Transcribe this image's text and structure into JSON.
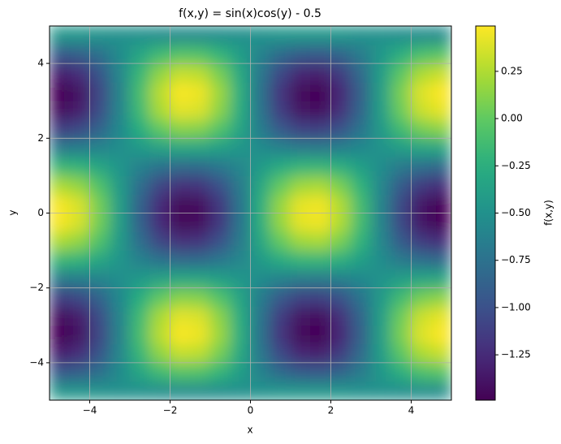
{
  "chart_data": {
    "type": "heatmap",
    "title": "f(x,y) = sin(x)cos(y) - 0.5",
    "x_label": "x",
    "y_label": "y",
    "colorbar_label": "f(x,y)",
    "colormap": "viridis",
    "grid": true,
    "xlim": [
      -5,
      5
    ],
    "ylim": [
      -5,
      5
    ],
    "clim": [
      -1.49,
      0.49
    ],
    "xticks": [
      {
        "value": -4,
        "label": "−4"
      },
      {
        "value": -2,
        "label": "−2"
      },
      0,
      2,
      4
    ],
    "yticks": [
      {
        "value": -4,
        "label": "−4"
      },
      {
        "value": -2,
        "label": "−2"
      },
      0,
      2,
      4
    ],
    "cticks": [
      0.25,
      {
        "value": 0,
        "label": "0.00"
      },
      {
        "value": -0.25,
        "label": "−0.25"
      },
      {
        "value": -0.5,
        "label": "−0.50"
      },
      {
        "value": -0.75,
        "label": "−0.75"
      },
      {
        "value": -1,
        "label": "−1.00"
      },
      {
        "value": -1.25,
        "label": "−1.25"
      }
    ],
    "x": [
      -4.75,
      -4.25,
      -3.75,
      -3.25,
      -2.75,
      -2.25,
      -1.75,
      -1.25,
      -0.75,
      -0.25,
      0.25,
      0.75,
      1.25,
      1.75,
      2.25,
      2.75,
      3.25,
      3.75,
      4.25,
      4.75
    ],
    "y": [
      -4.75,
      -4.25,
      -3.75,
      -3.25,
      -2.75,
      -2.25,
      -1.75,
      -1.25,
      -0.75,
      -0.25,
      0.25,
      0.75,
      1.25,
      1.75,
      2.25,
      2.75,
      3.25,
      3.75,
      4.25,
      4.75
    ],
    "z": [
      [
        -0.46,
        -0.47,
        -0.48,
        -0.5,
        -0.51,
        -0.53,
        -0.54,
        -0.54,
        -0.53,
        -0.51,
        -0.49,
        -0.47,
        -0.46,
        -0.46,
        -0.47,
        -0.49,
        -0.5,
        -0.52,
        -0.53,
        -0.54
      ],
      [
        -0.95,
        -0.9,
        -0.76,
        -0.55,
        -0.33,
        -0.15,
        -0.06,
        -0.08,
        -0.2,
        -0.39,
        -0.61,
        -0.8,
        -0.92,
        -0.94,
        -0.85,
        -0.67,
        -0.45,
        -0.25,
        -0.1,
        -0.05
      ],
      [
        -1.32,
        -1.23,
        -0.97,
        -0.59,
        -0.19,
        0.14,
        0.31,
        0.28,
        0.06,
        -0.3,
        -0.7,
        -1.06,
        -1.28,
        -1.31,
        -1.14,
        -0.81,
        -0.41,
        -0.03,
        0.23,
        0.32
      ],
      [
        -1.49,
        -1.39,
        -1.07,
        -0.61,
        -0.12,
        0.27,
        0.48,
        0.44,
        0.18,
        -0.25,
        -0.75,
        -1.18,
        -1.44,
        -1.48,
        -1.27,
        -0.88,
        -0.39,
        0.07,
        0.39,
        0.49
      ],
      [
        -1.42,
        -1.33,
        -1.03,
        -0.6,
        -0.15,
        0.22,
        0.41,
        0.38,
        0.13,
        -0.27,
        -0.73,
        -1.13,
        -1.38,
        -1.41,
        -1.22,
        -0.85,
        -0.4,
        0.03,
        0.33,
        0.42
      ],
      [
        -1.13,
        -1.06,
        -0.86,
        -0.57,
        -0.26,
        -0.01,
        0.12,
        0.1,
        -0.07,
        -0.34,
        -0.66,
        -0.93,
        -1.1,
        -1.12,
        -0.99,
        -0.74,
        -0.43,
        -0.14,
        0.06,
        0.13
      ],
      [
        -0.68,
        -0.66,
        -0.6,
        -0.52,
        -0.43,
        -0.36,
        -0.32,
        -0.33,
        -0.38,
        -0.46,
        -0.54,
        -0.62,
        -0.67,
        -0.68,
        -0.64,
        -0.57,
        -0.48,
        -0.4,
        -0.34,
        -0.32
      ],
      [
        -0.18,
        -0.22,
        -0.32,
        -0.47,
        -0.62,
        -0.75,
        -0.81,
        -0.8,
        -0.71,
        -0.58,
        -0.42,
        -0.29,
        -0.2,
        -0.19,
        -0.25,
        -0.38,
        -0.53,
        -0.68,
        -0.78,
        -0.82
      ],
      [
        0.23,
        0.15,
        -0.08,
        -0.42,
        -0.78,
        -1.07,
        -1.22,
        -1.19,
        -1.0,
        -0.68,
        -0.32,
        0.0,
        0.19,
        0.22,
        0.07,
        -0.22,
        -0.58,
        -0.92,
        -1.15,
        -1.23
      ],
      [
        0.47,
        0.37,
        0.05,
        -0.4,
        -0.87,
        -1.25,
        -1.45,
        -1.42,
        -1.16,
        -0.74,
        -0.26,
        0.16,
        0.42,
        0.45,
        0.25,
        -0.13,
        -0.6,
        -1.05,
        -1.37,
        -1.47
      ],
      [
        0.47,
        0.37,
        0.05,
        -0.4,
        -0.87,
        -1.25,
        -1.45,
        -1.42,
        -1.16,
        -0.74,
        -0.26,
        0.16,
        0.42,
        0.45,
        0.25,
        -0.13,
        -0.6,
        -1.05,
        -1.37,
        -1.47
      ],
      [
        0.23,
        0.15,
        -0.08,
        -0.42,
        -0.78,
        -1.07,
        -1.22,
        -1.19,
        -1.0,
        -0.68,
        -0.32,
        0.0,
        0.19,
        0.22,
        0.07,
        -0.22,
        -0.58,
        -0.92,
        -1.15,
        -1.23
      ],
      [
        -0.18,
        -0.22,
        -0.32,
        -0.47,
        -0.62,
        -0.75,
        -0.81,
        -0.8,
        -0.71,
        -0.58,
        -0.42,
        -0.29,
        -0.2,
        -0.19,
        -0.25,
        -0.38,
        -0.53,
        -0.68,
        -0.78,
        -0.82
      ],
      [
        -0.68,
        -0.66,
        -0.6,
        -0.52,
        -0.43,
        -0.36,
        -0.32,
        -0.33,
        -0.38,
        -0.46,
        -0.54,
        -0.62,
        -0.67,
        -0.68,
        -0.64,
        -0.57,
        -0.48,
        -0.4,
        -0.34,
        -0.32
      ],
      [
        -1.13,
        -1.06,
        -0.86,
        -0.57,
        -0.26,
        -0.01,
        0.12,
        0.1,
        -0.07,
        -0.34,
        -0.66,
        -0.93,
        -1.1,
        -1.12,
        -0.99,
        -0.74,
        -0.43,
        -0.14,
        0.06,
        0.13
      ],
      [
        -1.42,
        -1.33,
        -1.03,
        -0.6,
        -0.15,
        0.22,
        0.41,
        0.38,
        0.13,
        -0.27,
        -0.73,
        -1.13,
        -1.38,
        -1.41,
        -1.22,
        -0.85,
        -0.4,
        0.03,
        0.33,
        0.42
      ],
      [
        -1.49,
        -1.39,
        -1.07,
        -0.61,
        -0.12,
        0.27,
        0.48,
        0.44,
        0.18,
        -0.25,
        -0.75,
        -1.18,
        -1.44,
        -1.48,
        -1.27,
        -0.88,
        -0.39,
        0.07,
        0.39,
        0.49
      ],
      [
        -1.32,
        -1.23,
        -0.97,
        -0.59,
        -0.19,
        0.14,
        0.31,
        0.28,
        0.06,
        -0.3,
        -0.7,
        -1.06,
        -1.28,
        -1.31,
        -1.14,
        -0.81,
        -0.41,
        -0.03,
        0.23,
        0.32
      ],
      [
        -0.95,
        -0.9,
        -0.76,
        -0.55,
        -0.33,
        -0.15,
        -0.06,
        -0.08,
        -0.2,
        -0.39,
        -0.61,
        -0.8,
        -0.92,
        -0.94,
        -0.85,
        -0.67,
        -0.45,
        -0.25,
        -0.1,
        -0.05
      ],
      [
        -0.46,
        -0.47,
        -0.48,
        -0.5,
        -0.51,
        -0.53,
        -0.54,
        -0.54,
        -0.53,
        -0.51,
        -0.49,
        -0.47,
        -0.46,
        -0.46,
        -0.47,
        -0.49,
        -0.5,
        -0.52,
        -0.53,
        -0.54
      ]
    ]
  }
}
